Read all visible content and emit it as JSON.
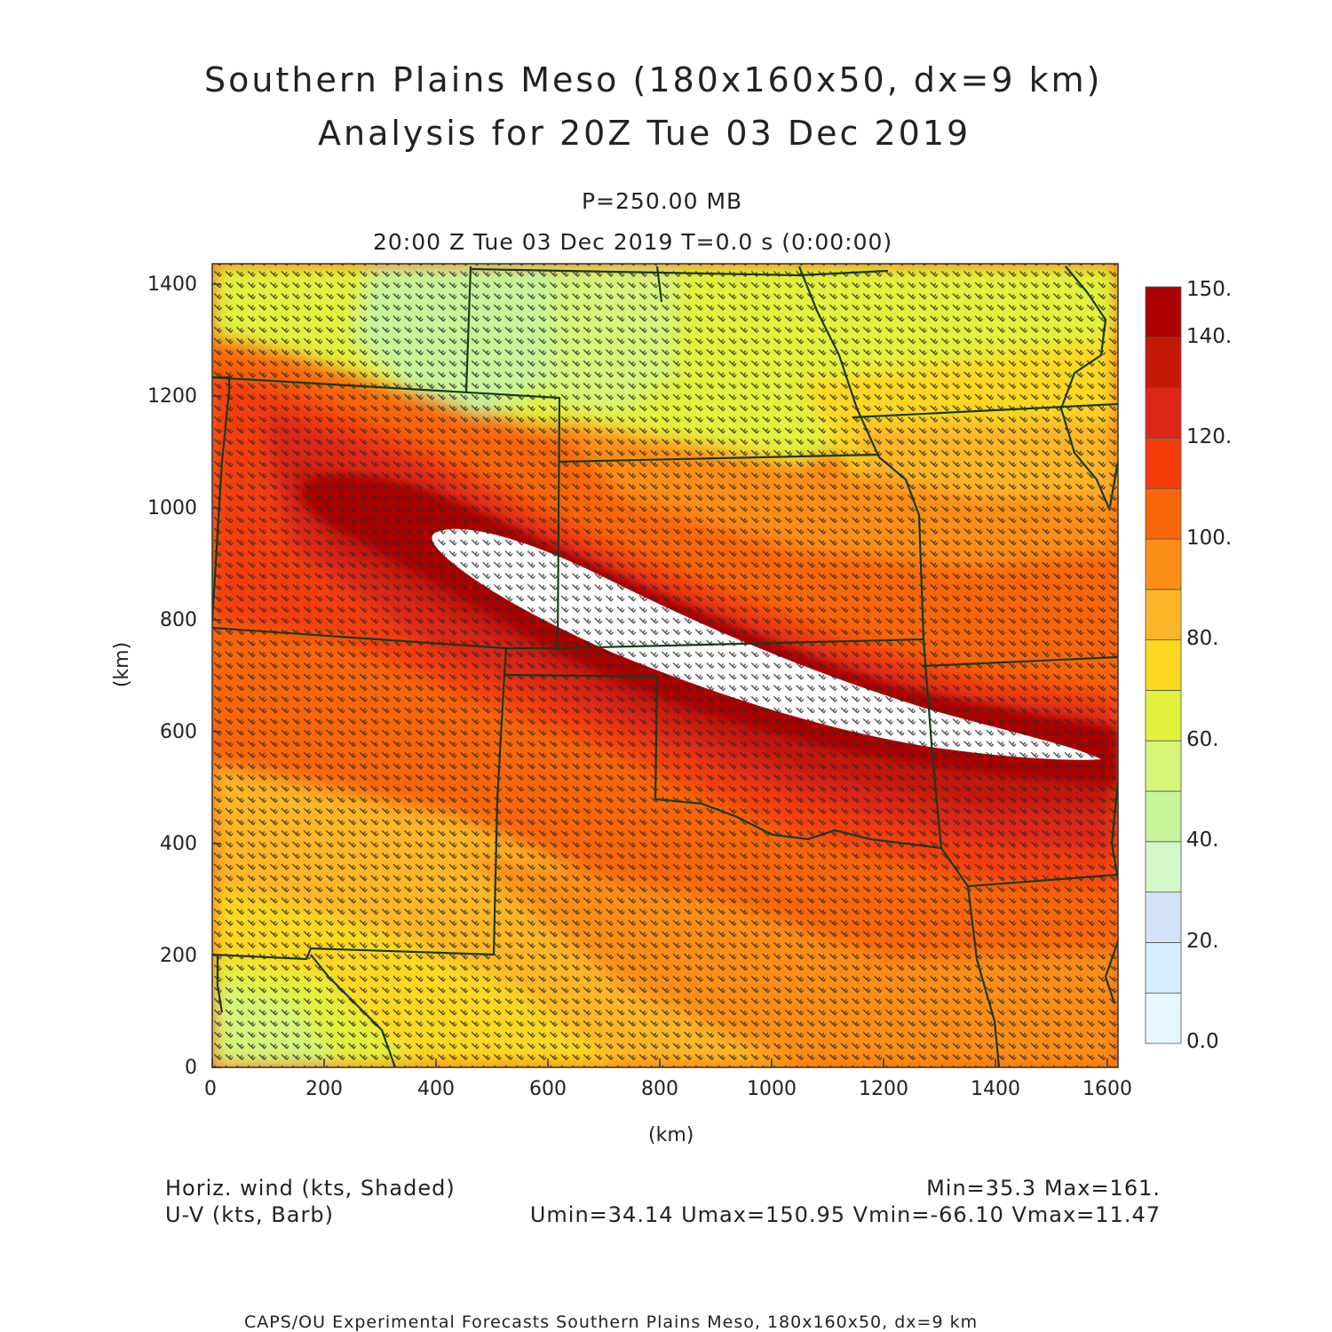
{
  "title": {
    "line1": "Southern Plains Meso (180x160x50, dx=9 km)",
    "line2": "Analysis for 20Z Tue 03 Dec 2019"
  },
  "subtitle": {
    "level": "P=250.00 MB",
    "time": "20:00 Z Tue 03 Dec 2019    T=0.0 s (0:00:00)"
  },
  "axes": {
    "x_ticks": [
      "0",
      "200",
      "400",
      "600",
      "800",
      "1000",
      "1200",
      "1400",
      "1600"
    ],
    "y_ticks": [
      "0",
      "200",
      "400",
      "600",
      "800",
      "1000",
      "1200",
      "1400"
    ],
    "xlabel": "(km)",
    "ylabel": "(km)",
    "xlim": [
      0,
      1620
    ],
    "ylim": [
      0,
      1440
    ]
  },
  "colorbar": {
    "labels": [
      "0.0",
      "20.",
      "40.",
      "60.",
      "80.",
      "100.",
      "120.",
      "140.",
      "150."
    ],
    "colors": [
      "#e6f6ff",
      "#d6ecff",
      "#d4e2fc",
      "#d2f8c8",
      "#c6f59a",
      "#d6f57a",
      "#e2f23c",
      "#fcd820",
      "#fcb628",
      "#fc8e18",
      "#f9660a",
      "#f43c0a",
      "#dc2618",
      "#c41808",
      "#aa0000"
    ],
    "bounds": [
      0,
      10,
      20,
      30,
      40,
      50,
      60,
      70,
      80,
      90,
      100,
      110,
      120,
      130,
      140,
      150
    ]
  },
  "footer": {
    "field1": "Horiz. wind (kts, Shaded)",
    "field2": "U-V (kts, Barb)",
    "minmax": "Min=35.3 Max=161.",
    "uv_stats": "Umin=34.14 Umax=150.95 Vmin=-66.10 Vmax=11.47",
    "credit": "CAPS/OU Experimental Forecasts  Southern Plains Meso, 180x160x50, dx=9 km"
  },
  "map": {
    "field": "250 mb horizontal wind speed (kts)",
    "jet_max_color": "#ffffff",
    "border_color": "#1a3a1a",
    "barb_color": "#2a2a2a"
  }
}
